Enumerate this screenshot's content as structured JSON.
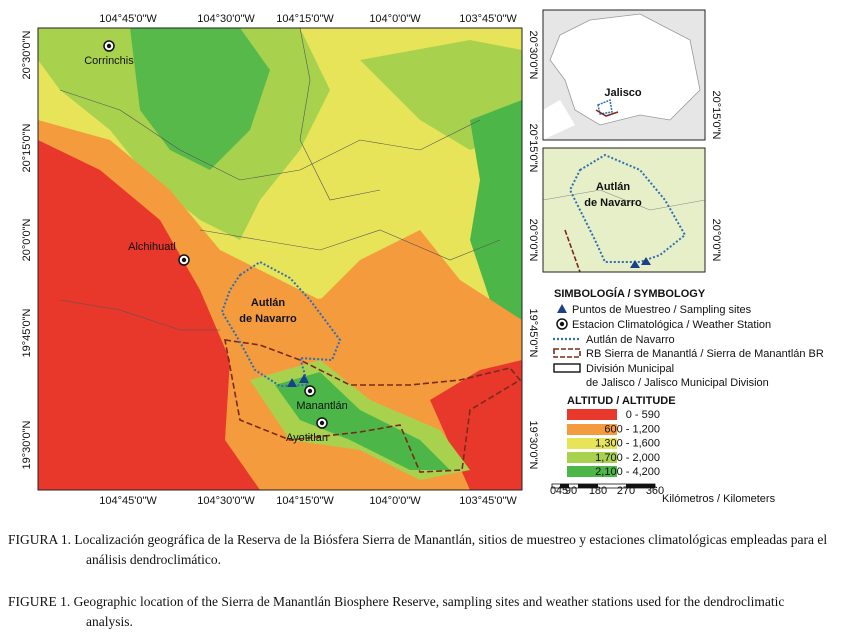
{
  "map": {
    "top_labels": [
      "104°45'0\"W",
      "104°30'0\"W",
      "104°15'0\"W",
      "104°0'0\"W",
      "103°45'0\"W"
    ],
    "bottom_labels": [
      "104°45'0\"W",
      "104°30'0\"W",
      "104°15'0\"W",
      "104°0'0\"W",
      "103°45'0\"W"
    ],
    "left_labels": [
      "20°30'0\"N",
      "20°15'0\"N",
      "20°0'0\"N",
      "19°45'0\"N",
      "19°30'0\"N"
    ],
    "right_labels": [
      "20°30'0\"N",
      "20°15'0\"N",
      "20°0'0\"N",
      "19°45'0\"N",
      "19°30'0\"N"
    ],
    "stations": [
      "Corrinchis",
      "Alchihuatl",
      "Manantlán",
      "Ayotitlan"
    ],
    "area_label": [
      "Autlán",
      "de Navarro"
    ]
  },
  "insets": [
    {
      "label": [
        "Jalisco"
      ],
      "axis_label": "20°15'0\"N"
    },
    {
      "label": [
        "Autlán",
        "de Navarro"
      ],
      "axis_label": "20°0'0\"N"
    }
  ],
  "legend": {
    "title": "SIMBOLOGÍA / SYMBOLOGY",
    "items": [
      "Puntos de Muestreo / Sampling sites",
      "Estacion Climatológica / Weather Station",
      "Autlán de Navarro",
      "RB Sierra de Manantlá / Sierra de Manantlán BR",
      "División Municipal",
      "de Jalisco / Jalisco Municipal Division"
    ],
    "altitude_title": "ALTITUD / ALTITUDE",
    "altitude_classes": [
      "0 - 590",
      "600 - 1,200",
      "1,300 - 1,600",
      "1,700 - 2,000",
      "2,100 - 4,200"
    ]
  },
  "scale": {
    "ticks": [
      0,
      45,
      90,
      180,
      270,
      360
    ],
    "unit": "Kilómetros / Kilometers"
  },
  "captions": [
    {
      "lead": "FIGURA 1.",
      "text": "Localización geográfica de la Reserva de la Biósfera Sierra de Manantlán, sitios de muestreo y estaciones climatológicas empleadas para el análisis dendroclimático."
    },
    {
      "lead": "FIGURE 1.",
      "text": "Geographic location of the Sierra de Manantlán Biosphere Reserve, sampling sites and weather stations used for the dendroclimatic analysis."
    }
  ]
}
